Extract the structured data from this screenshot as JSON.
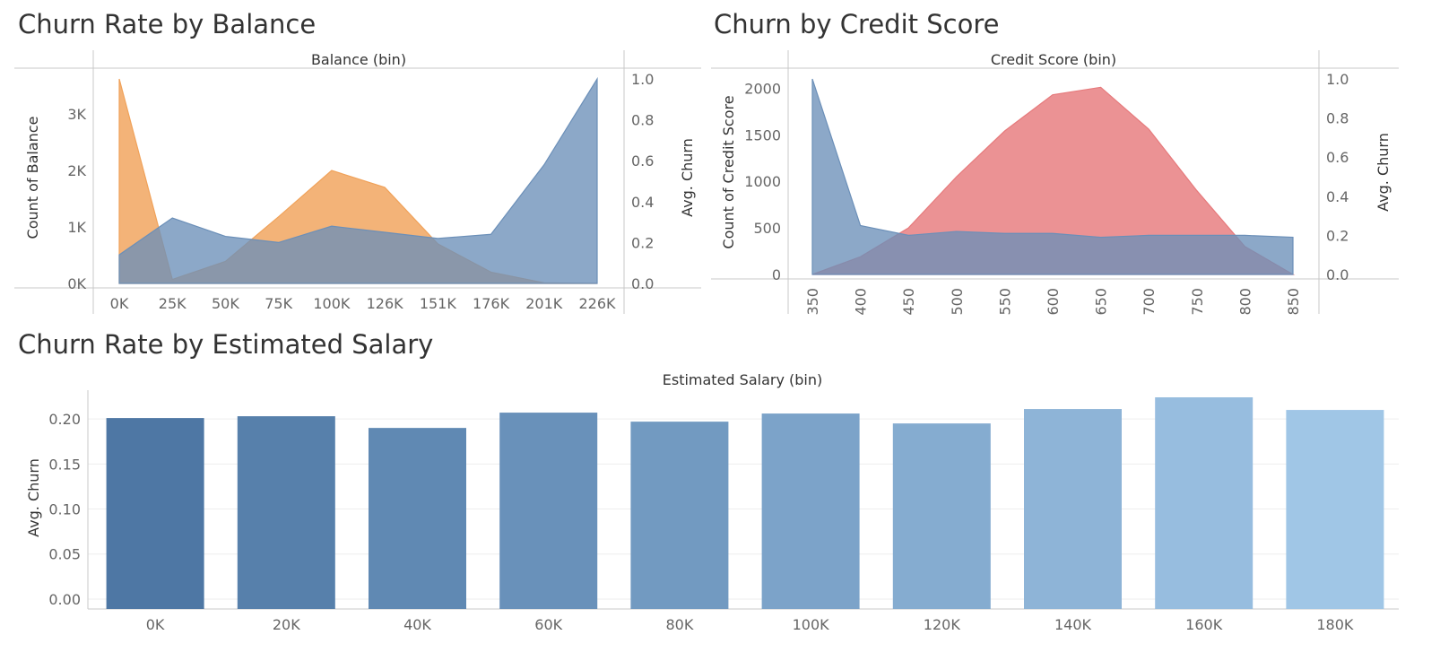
{
  "titles": {
    "balance": "Churn Rate by Balance",
    "credit": "Churn by Credit Score",
    "salary": "Churn Rate by Estimated Salary"
  },
  "colors": {
    "orange": "#f0a25a",
    "blue": "#6b8fb8",
    "red": "#e67a7c",
    "axis": "#c8c8c8",
    "grid": "#eeeeee",
    "bar_start": "#4e77a4",
    "bar_end": "#a0c6e6"
  },
  "chart_data": [
    {
      "id": "balance",
      "type": "area",
      "title": "Churn Rate by Balance",
      "xlabel": "Balance (bin)",
      "ylabel": "Count of Balance",
      "ylabel_right": "Avg. Churn",
      "categories": [
        "0K",
        "25K",
        "50K",
        "75K",
        "100K",
        "126K",
        "151K",
        "176K",
        "201K",
        "226K"
      ],
      "y_ticks": [
        "0K",
        "1K",
        "2K",
        "3K"
      ],
      "y_tick_values": [
        0,
        1000,
        2000,
        3000
      ],
      "y2_ticks": [
        "0.0",
        "0.2",
        "0.4",
        "0.6",
        "0.8",
        "1.0"
      ],
      "y2_tick_values": [
        0,
        0.2,
        0.4,
        0.6,
        0.8,
        1.0
      ],
      "ylim": [
        0,
        3620
      ],
      "y2lim": [
        0,
        1.0
      ],
      "series": [
        {
          "name": "Count of Balance",
          "axis": "left",
          "color": "orange",
          "values": [
            3620,
            70,
            390,
            1180,
            2000,
            1700,
            700,
            200,
            10,
            0
          ]
        },
        {
          "name": "Avg. Churn",
          "axis": "right",
          "color": "blue",
          "values": [
            0.14,
            0.32,
            0.23,
            0.2,
            0.28,
            0.25,
            0.22,
            0.24,
            0.58,
            1.0
          ]
        }
      ]
    },
    {
      "id": "credit",
      "type": "area",
      "title": "Churn by Credit Score",
      "xlabel": "Credit Score (bin)",
      "ylabel": "Count of Credit Score",
      "ylabel_right": "Avg. Churn",
      "categories": [
        "350",
        "400",
        "450",
        "500",
        "550",
        "600",
        "650",
        "700",
        "750",
        "800",
        "850"
      ],
      "y_ticks": [
        "0",
        "500",
        "1000",
        "1500",
        "2000"
      ],
      "y_tick_values": [
        0,
        500,
        1000,
        1500,
        2000
      ],
      "y2_ticks": [
        "0.0",
        "0.2",
        "0.4",
        "0.6",
        "0.8",
        "1.0"
      ],
      "y2_tick_values": [
        0,
        0.2,
        0.4,
        0.6,
        0.8,
        1.0
      ],
      "ylim": [
        0,
        2100
      ],
      "y2lim": [
        0,
        1.0
      ],
      "series": [
        {
          "name": "Count of Credit Score",
          "axis": "left",
          "color": "red",
          "values": [
            0,
            190,
            500,
            1050,
            1540,
            1930,
            2010,
            1560,
            900,
            300,
            0
          ]
        },
        {
          "name": "Avg. Churn",
          "axis": "right",
          "color": "blue",
          "values": [
            1.0,
            0.25,
            0.2,
            0.22,
            0.21,
            0.21,
            0.19,
            0.2,
            0.2,
            0.2,
            0.19
          ]
        }
      ]
    },
    {
      "id": "salary",
      "type": "bar",
      "title": "Churn Rate by Estimated Salary",
      "xlabel": "Estimated Salary (bin)",
      "ylabel": "Avg. Churn",
      "categories": [
        "0K",
        "20K",
        "40K",
        "60K",
        "80K",
        "100K",
        "120K",
        "140K",
        "160K",
        "180K"
      ],
      "values": [
        0.201,
        0.203,
        0.19,
        0.207,
        0.197,
        0.206,
        0.195,
        0.211,
        0.224,
        0.21
      ],
      "y_ticks": [
        "0.00",
        "0.05",
        "0.10",
        "0.15",
        "0.20"
      ],
      "y_tick_values": [
        0,
        0.05,
        0.1,
        0.15,
        0.2
      ],
      "ylim": [
        -0.011,
        0.224
      ]
    }
  ]
}
